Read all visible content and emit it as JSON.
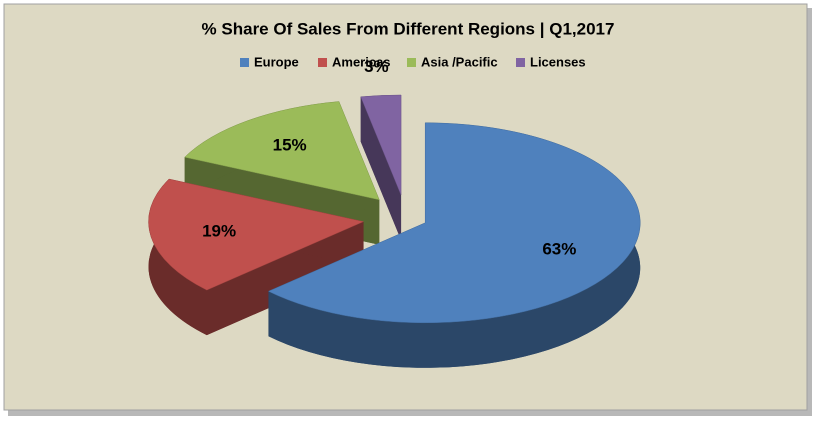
{
  "chart_data": {
    "type": "pie",
    "title": "% Share Of Sales From Different Regions | Q1,2017",
    "categories": [
      "Europe",
      "Americas",
      "Asia /Pacific",
      "Licenses"
    ],
    "values": [
      63,
      19,
      15,
      3
    ],
    "value_labels": [
      "63%",
      "19%",
      "15%",
      "3%"
    ],
    "colors": [
      "#4f81bd",
      "#c0504d",
      "#9bbb59",
      "#8064a2"
    ],
    "legend": "top"
  }
}
